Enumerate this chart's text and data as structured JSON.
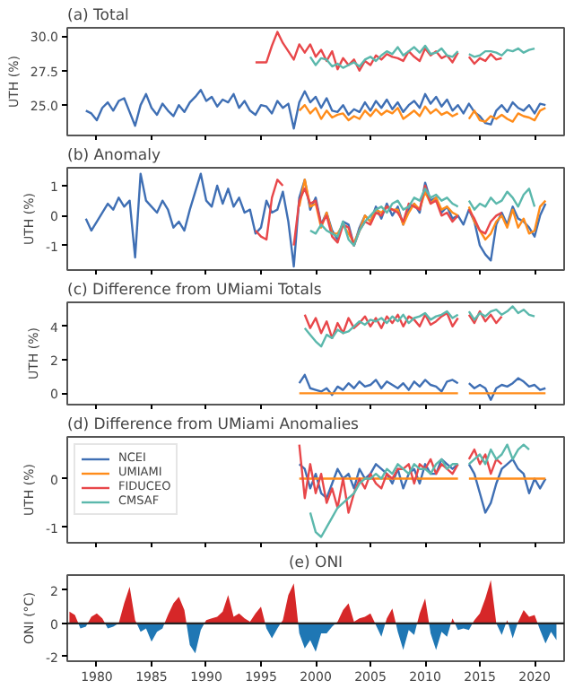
{
  "chart_data": [
    {
      "type": "line",
      "title": "(a)  Total",
      "ylabel": "UTH (%)",
      "xlim": [
        1977.3,
        2022.7
      ],
      "xticks": [
        1980,
        1985,
        1990,
        1995,
        2000,
        2005,
        2010,
        2015,
        2020
      ],
      "ylim": [
        22.8,
        30.6
      ],
      "yticks": [
        {
          "value": 25,
          "label": "25.0"
        },
        27.5,
        {
          "value": 30,
          "label": "30.0"
        }
      ],
      "tick_labels": "y",
      "x": [
        1979,
        1979.5,
        1980,
        1980.5,
        1981,
        1981.5,
        1982,
        1982.5,
        1983,
        1983.5,
        1984,
        1984.5,
        1985,
        1985.5,
        1986,
        1986.5,
        1987,
        1987.5,
        1988,
        1988.5,
        1989,
        1989.5,
        1990,
        1990.5,
        1991,
        1991.5,
        1992,
        1992.5,
        1993,
        1993.5,
        1994,
        1994.5,
        1995,
        1995.5,
        1996,
        1996.5,
        1997,
        1997.5,
        1998,
        1998.5,
        1999,
        1999.5,
        2000,
        2000.5,
        2001,
        2001.5,
        2002,
        2002.5,
        2003,
        2003.5,
        2004,
        2004.5,
        2005,
        2005.5,
        2006,
        2006.5,
        2007,
        2007.5,
        2008,
        2008.5,
        2009,
        2009.5,
        2010,
        2010.5,
        2011,
        2011.5,
        2012,
        2012.5,
        2013,
        2013.5,
        2014,
        2014.5,
        2015,
        2015.5,
        2016,
        2016.5,
        2017,
        2017.5,
        2018,
        2018.5,
        2019,
        2019.5,
        2020,
        2020.5,
        2021
      ],
      "series": [
        {
          "color": "#3f6fb4",
          "values": [
            24.6,
            24.4,
            23.9,
            24.8,
            25.2,
            24.6,
            25.3,
            25.5,
            24.5,
            23.5,
            25.0,
            25.8,
            24.8,
            24.3,
            25.1,
            24.6,
            24.2,
            25.0,
            24.5,
            25.2,
            25.6,
            26.1,
            25.3,
            25.6,
            24.9,
            25.4,
            25.2,
            25.8,
            24.8,
            25.3,
            24.6,
            24.3,
            25.0,
            24.9,
            24.4,
            25.3,
            24.8,
            25.1,
            23.3,
            25.2,
            26.0,
            25.2,
            25.6,
            24.8,
            25.5,
            24.6,
            24.5,
            25.0,
            24.3,
            24.7,
            24.5,
            25.2,
            24.6,
            25.3,
            24.8,
            25.4,
            24.7,
            25.2,
            24.5,
            25.0,
            25.3,
            24.8,
            25.8,
            25.1,
            25.6,
            24.9,
            25.4,
            24.6,
            25.0,
            24.4,
            25.1,
            24.5,
            24.2,
            23.7,
            23.6,
            24.6,
            25.0,
            24.5,
            25.2,
            24.8,
            24.6,
            25.0,
            24.4,
            25.1,
            25.0
          ]
        },
        {
          "color": "#ff8c1a",
          "values": [
            null,
            null,
            null,
            null,
            null,
            null,
            null,
            null,
            null,
            null,
            null,
            null,
            null,
            null,
            null,
            null,
            null,
            null,
            null,
            null,
            null,
            null,
            null,
            null,
            null,
            null,
            null,
            null,
            null,
            null,
            null,
            null,
            null,
            null,
            null,
            null,
            null,
            null,
            null,
            24.6,
            25.0,
            24.4,
            24.8,
            24.0,
            24.6,
            24.1,
            24.3,
            24.4,
            23.9,
            24.2,
            24.0,
            24.6,
            24.2,
            24.7,
            24.3,
            24.6,
            24.4,
            24.8,
            24.0,
            24.3,
            24.6,
            24.2,
            24.9,
            24.4,
            24.7,
            24.3,
            24.5,
            24.2,
            24.4,
            null,
            24.0,
            24.6,
            23.9,
            23.8,
            24.2,
            24.0,
            24.3,
            24.0,
            23.8,
            24.4,
            24.2,
            24.1,
            23.9,
            24.6,
            24.8
          ]
        },
        {
          "color": "#e8474a",
          "values": [
            null,
            null,
            null,
            null,
            null,
            null,
            null,
            null,
            null,
            null,
            null,
            null,
            null,
            null,
            null,
            null,
            null,
            null,
            null,
            null,
            null,
            null,
            null,
            null,
            null,
            null,
            null,
            null,
            null,
            null,
            null,
            28.1,
            28.1,
            28.1,
            29.3,
            30.3,
            29.5,
            28.9,
            28.3,
            29.4,
            28.8,
            29.4,
            28.5,
            29.0,
            28.2,
            28.9,
            27.6,
            28.4,
            27.9,
            28.3,
            27.5,
            28.2,
            27.9,
            28.6,
            28.3,
            28.7,
            28.5,
            28.4,
            28.2,
            28.9,
            28.5,
            28.2,
            29.1,
            28.6,
            28.9,
            28.4,
            28.6,
            28.1,
            28.8,
            null,
            28.5,
            28.0,
            28.4,
            28.2,
            28.7,
            28.3,
            28.4,
            null,
            null,
            null,
            null,
            null,
            null,
            null,
            null
          ]
        },
        {
          "color": "#5bb8ac",
          "values": [
            null,
            null,
            null,
            null,
            null,
            null,
            null,
            null,
            null,
            null,
            null,
            null,
            null,
            null,
            null,
            null,
            null,
            null,
            null,
            null,
            null,
            null,
            null,
            null,
            null,
            null,
            null,
            null,
            null,
            null,
            null,
            null,
            null,
            null,
            null,
            null,
            null,
            null,
            null,
            null,
            null,
            28.5,
            27.9,
            28.4,
            28.3,
            27.8,
            28.0,
            27.7,
            27.9,
            28.1,
            27.8,
            28.3,
            28.5,
            28.2,
            28.6,
            28.9,
            28.7,
            29.2,
            28.6,
            28.9,
            29.2,
            28.8,
            29.3,
            28.7,
            28.8,
            29.1,
            28.6,
            28.5,
            28.9,
            null,
            28.7,
            28.5,
            28.6,
            28.9,
            28.9,
            28.8,
            28.6,
            29.0,
            28.9,
            29.1,
            28.8,
            29.0,
            29.1,
            null,
            null
          ]
        }
      ]
    },
    {
      "type": "line",
      "title": "(b)  Anomaly",
      "ylabel": "UTH (%)",
      "xlim": [
        1977.3,
        2022.7
      ],
      "xticks": [
        1980,
        1985,
        1990,
        1995,
        2000,
        2005,
        2010,
        2015,
        2020
      ],
      "ylim": [
        -1.82,
        1.6
      ],
      "yticks": [
        -1,
        0,
        1
      ],
      "tick_labels": "y",
      "x": [
        1979,
        1979.5,
        1980,
        1980.5,
        1981,
        1981.5,
        1982,
        1982.5,
        1983,
        1983.5,
        1984,
        1984.5,
        1985,
        1985.5,
        1986,
        1986.5,
        1987,
        1987.5,
        1988,
        1988.5,
        1989,
        1989.5,
        1990,
        1990.5,
        1991,
        1991.5,
        1992,
        1992.5,
        1993,
        1993.5,
        1994,
        1994.5,
        1995,
        1995.5,
        1996,
        1996.5,
        1997,
        1997.5,
        1998,
        1998.5,
        1999,
        1999.5,
        2000,
        2000.5,
        2001,
        2001.5,
        2002,
        2002.5,
        2003,
        2003.5,
        2004,
        2004.5,
        2005,
        2005.5,
        2006,
        2006.5,
        2007,
        2007.5,
        2008,
        2008.5,
        2009,
        2009.5,
        2010,
        2010.5,
        2011,
        2011.5,
        2012,
        2012.5,
        2013,
        2013.5,
        2014,
        2014.5,
        2015,
        2015.5,
        2016,
        2016.5,
        2017,
        2017.5,
        2018,
        2018.5,
        2019,
        2019.5,
        2020,
        2020.5,
        2021
      ],
      "series": [
        {
          "color": "#3f6fb4",
          "values": [
            -0.1,
            -0.5,
            -0.2,
            0.1,
            0.4,
            0.2,
            0.6,
            0.3,
            0.5,
            -1.4,
            1.4,
            0.5,
            0.3,
            0.1,
            0.5,
            0.2,
            -0.4,
            -0.2,
            -0.5,
            0.2,
            0.8,
            1.4,
            0.5,
            0.3,
            1.0,
            0.4,
            0.9,
            0.3,
            0.6,
            0.1,
            0.2,
            -0.6,
            -0.4,
            0.5,
            0.1,
            0.2,
            0.8,
            -0.2,
            -1.7,
            0.6,
            1.2,
            0.2,
            0.6,
            -0.3,
            0.1,
            -0.5,
            -0.8,
            -0.2,
            -0.3,
            -1.0,
            -0.4,
            0.0,
            -0.2,
            0.3,
            -0.1,
            0.4,
            0.0,
            0.3,
            -0.3,
            0.2,
            0.4,
            0.1,
            1.1,
            0.5,
            0.6,
            0.1,
            0.3,
            -0.1,
            0.0,
            -0.3,
            0.2,
            -0.2,
            -1.0,
            -1.3,
            -1.5,
            -0.3,
            0.1,
            -0.3,
            0.3,
            -0.1,
            -0.2,
            -0.4,
            -0.7,
            0.0,
            0.4
          ]
        },
        {
          "color": "#ff8c1a",
          "values": [
            null,
            null,
            null,
            null,
            null,
            null,
            null,
            null,
            null,
            null,
            null,
            null,
            null,
            null,
            null,
            null,
            null,
            null,
            null,
            null,
            null,
            null,
            null,
            null,
            null,
            null,
            null,
            null,
            null,
            null,
            null,
            null,
            null,
            null,
            null,
            null,
            null,
            null,
            null,
            0.3,
            1.2,
            0.3,
            0.4,
            -0.4,
            0.1,
            -0.6,
            -0.6,
            -0.3,
            -0.6,
            -0.9,
            -0.5,
            0.0,
            -0.2,
            0.2,
            0.1,
            0.3,
            0.2,
            0.2,
            -0.3,
            0.1,
            0.4,
            0.2,
            0.8,
            0.4,
            0.6,
            0.2,
            0.3,
            0.1,
            0.0,
            null,
            0.3,
            -0.2,
            -0.5,
            -0.8,
            -0.6,
            -0.2,
            0.0,
            -0.4,
            0.2,
            -0.4,
            -0.1,
            -0.6,
            -0.5,
            0.3,
            0.5
          ]
        },
        {
          "color": "#e8474a",
          "values": [
            null,
            null,
            null,
            null,
            null,
            null,
            null,
            null,
            null,
            null,
            null,
            null,
            null,
            null,
            null,
            null,
            null,
            null,
            null,
            null,
            null,
            null,
            null,
            null,
            null,
            null,
            null,
            null,
            null,
            null,
            null,
            -0.5,
            -0.7,
            -0.8,
            0.6,
            1.2,
            1.0,
            null,
            -1.0,
            0.5,
            0.9,
            0.4,
            0.5,
            -0.3,
            0.0,
            -0.7,
            -0.9,
            -0.3,
            -0.4,
            -1.0,
            -0.5,
            -0.2,
            -0.3,
            0.1,
            0.0,
            0.3,
            0.2,
            0.1,
            -0.2,
            0.4,
            0.3,
            0.2,
            1.0,
            0.4,
            0.5,
            0.0,
            0.1,
            -0.2,
            0.0,
            null,
            0.2,
            -0.1,
            -0.5,
            -0.6,
            -0.2,
            0.0,
            0.1,
            null,
            null,
            null,
            null,
            null,
            null,
            null,
            null
          ]
        },
        {
          "color": "#5bb8ac",
          "values": [
            null,
            null,
            null,
            null,
            null,
            null,
            null,
            null,
            null,
            null,
            null,
            null,
            null,
            null,
            null,
            null,
            null,
            null,
            null,
            null,
            null,
            null,
            null,
            null,
            null,
            null,
            null,
            null,
            null,
            null,
            null,
            null,
            null,
            null,
            null,
            null,
            null,
            null,
            null,
            null,
            null,
            -0.5,
            -0.6,
            -0.3,
            -0.5,
            -0.6,
            -0.7,
            -0.2,
            -0.8,
            -1.0,
            -0.5,
            -0.2,
            0.0,
            0.2,
            0.3,
            0.1,
            0.4,
            0.5,
            0.2,
            0.3,
            0.6,
            0.5,
            0.9,
            0.6,
            0.7,
            0.5,
            0.6,
            0.4,
            0.3,
            null,
            0.5,
            0.2,
            0.4,
            0.3,
            0.6,
            0.4,
            0.5,
            0.8,
            0.6,
            0.3,
            0.7,
            0.9,
            0.3,
            null,
            null
          ]
        }
      ]
    },
    {
      "type": "line",
      "title": "(c)  Difference from UMiami Totals",
      "ylabel": "UTH (%)",
      "xlim": [
        1977.3,
        2022.7
      ],
      "xticks": [
        1980,
        1985,
        1990,
        1995,
        2000,
        2005,
        2010,
        2015,
        2020
      ],
      "ylim": [
        -0.68,
        5.44
      ],
      "yticks": [
        0,
        2,
        4
      ],
      "tick_labels": "y",
      "x": [
        1998.5,
        1999,
        1999.5,
        2000,
        2000.5,
        2001,
        2001.5,
        2002,
        2002.5,
        2003,
        2003.5,
        2004,
        2004.5,
        2005,
        2005.5,
        2006,
        2006.5,
        2007,
        2007.5,
        2008,
        2008.5,
        2009,
        2009.5,
        2010,
        2010.5,
        2011,
        2011.5,
        2012,
        2012.5,
        2013,
        2013.5,
        2014,
        2014.5,
        2015,
        2015.5,
        2016,
        2016.5,
        2017,
        2017.5,
        2018,
        2018.5,
        2019,
        2019.5,
        2020,
        2020.5,
        2021
      ],
      "series": [
        {
          "color": "#3f6fb4",
          "values": [
            0.6,
            1.1,
            0.3,
            0.2,
            0.1,
            0.3,
            -0.1,
            0.4,
            0.2,
            0.6,
            0.3,
            0.7,
            0.4,
            0.5,
            0.8,
            0.3,
            0.7,
            0.5,
            0.3,
            0.6,
            0.2,
            0.7,
            0.4,
            0.8,
            0.5,
            0.4,
            0.1,
            0.7,
            0.8,
            0.6,
            null,
            0.6,
            0.3,
            0.5,
            0.3,
            -0.4,
            0.3,
            0.5,
            0.4,
            0.6,
            0.9,
            0.7,
            0.4,
            0.5,
            0.2,
            0.3
          ]
        },
        {
          "color": "#ff8c1a",
          "values": [
            0,
            0,
            0,
            0,
            0,
            0,
            0,
            0,
            0,
            0,
            0,
            0,
            0,
            0,
            0,
            0,
            0,
            0,
            0,
            0,
            0,
            0,
            0,
            0,
            0,
            0,
            0,
            0,
            0,
            0,
            null,
            0,
            0,
            0,
            0,
            0,
            0,
            0,
            0,
            0,
            0,
            0,
            0,
            0,
            0,
            0
          ]
        },
        {
          "color": "#e8474a",
          "values": [
            null,
            4.7,
            3.9,
            4.5,
            3.6,
            4.3,
            3.3,
            4.2,
            3.6,
            4.5,
            3.9,
            4.2,
            4.6,
            4.0,
            4.5,
            3.9,
            4.6,
            4.2,
            4.7,
            4.0,
            4.6,
            4.4,
            4.0,
            4.7,
            4.1,
            4.3,
            4.6,
            4.8,
            4.0,
            4.5,
            null,
            4.7,
            4.2,
            4.9,
            4.3,
            4.7,
            4.2,
            4.6,
            null,
            null,
            null,
            null,
            null,
            null,
            null,
            null
          ]
        },
        {
          "color": "#5bb8ac",
          "values": [
            null,
            3.9,
            3.5,
            3.1,
            2.8,
            3.5,
            3.3,
            3.8,
            3.6,
            3.7,
            4.0,
            4.3,
            4.1,
            4.4,
            4.3,
            4.5,
            4.2,
            4.6,
            4.3,
            4.7,
            4.2,
            4.5,
            4.6,
            4.8,
            4.4,
            4.6,
            4.7,
            4.9,
            4.5,
            4.7,
            null,
            4.9,
            4.4,
            4.8,
            4.6,
            4.9,
            5.0,
            4.7,
            4.9,
            5.2,
            4.8,
            5.0,
            4.7,
            4.6,
            null,
            null
          ]
        }
      ]
    },
    {
      "type": "line",
      "title": "(d)  Difference from UMiami Anomalies",
      "ylabel": "UTH (%)",
      "xlim": [
        1977.3,
        2022.7
      ],
      "xticks": [
        1980,
        1985,
        1990,
        1995,
        2000,
        2005,
        2010,
        2015,
        2020
      ],
      "ylim": [
        -1.32,
        0.86
      ],
      "yticks": [
        -1,
        0
      ],
      "tick_labels": "y",
      "legend": "top left",
      "x": [
        1998.5,
        1999,
        1999.5,
        2000,
        2000.5,
        2001,
        2001.5,
        2002,
        2002.5,
        2003,
        2003.5,
        2004,
        2004.5,
        2005,
        2005.5,
        2006,
        2006.5,
        2007,
        2007.5,
        2008,
        2008.5,
        2009,
        2009.5,
        2010,
        2010.5,
        2011,
        2011.5,
        2012,
        2012.5,
        2013,
        2013.5,
        2014,
        2014.5,
        2015,
        2015.5,
        2016,
        2016.5,
        2017,
        2017.5,
        2018,
        2018.5,
        2019,
        2019.5,
        2020,
        2020.5,
        2021
      ],
      "series": [
        {
          "name": "NCEI",
          "color": "#3f6fb4",
          "values": [
            0.3,
            0.2,
            -0.2,
            0.1,
            -0.3,
            -0.4,
            -0.1,
            0.2,
            0.0,
            0.1,
            -0.2,
            0.2,
            0.0,
            0.1,
            0.3,
            0.2,
            0.1,
            -0.1,
            0.2,
            -0.2,
            0.1,
            0.2,
            -0.1,
            0.3,
            0.1,
            0.1,
            0.4,
            0.3,
            0.2,
            0.3,
            null,
            0.3,
            0.1,
            -0.3,
            -0.7,
            -0.5,
            -0.1,
            0.2,
            0.3,
            0.4,
            0.2,
            0.1,
            -0.3,
            0.0,
            -0.2,
            0.0
          ]
        },
        {
          "name": "UMIAMI",
          "color": "#ff8c1a",
          "values": [
            0,
            0,
            0,
            0,
            0,
            0,
            0,
            0,
            0,
            0,
            0,
            0,
            0,
            0,
            0,
            0,
            0,
            0,
            0,
            0,
            0,
            0,
            0,
            0,
            0,
            0,
            0,
            0,
            0,
            0,
            null,
            0,
            0,
            0,
            0,
            0,
            0,
            0,
            0,
            0,
            0,
            0,
            0,
            0,
            0,
            0
          ]
        },
        {
          "name": "FIDUCEO",
          "color": "#e8474a",
          "values": [
            0.7,
            -0.4,
            0.3,
            -0.3,
            0.1,
            -0.5,
            -0.2,
            -0.6,
            0.0,
            -0.7,
            -0.3,
            0.0,
            -0.2,
            0.1,
            -0.1,
            -0.2,
            0.1,
            0.0,
            0.2,
            0.2,
            0.3,
            -0.1,
            0.3,
            0.2,
            0.4,
            0.1,
            0.3,
            0.2,
            0.1,
            0.3,
            null,
            0.4,
            0.6,
            0.3,
            0.5,
            0.1,
            0.4,
            0.3,
            null,
            null,
            null,
            null,
            null,
            null,
            null,
            null
          ]
        },
        {
          "name": "CMSAF",
          "color": "#5bb8ac",
          "values": [
            null,
            null,
            -0.7,
            -1.1,
            -1.2,
            -1.0,
            -0.8,
            -0.6,
            -0.5,
            -0.4,
            -0.3,
            -0.1,
            0.0,
            0.0,
            0.1,
            0.0,
            0.2,
            0.1,
            0.3,
            0.2,
            0.1,
            0.3,
            0.2,
            0.2,
            0.1,
            0.3,
            0.4,
            0.2,
            0.3,
            0.3,
            null,
            0.3,
            0.4,
            0.5,
            0.3,
            0.6,
            0.4,
            0.5,
            0.7,
            0.4,
            0.6,
            0.7,
            0.6,
            null,
            null,
            null
          ]
        }
      ]
    },
    {
      "type": "area",
      "title": "(e) ONI",
      "ylabel": "ONI (°C)",
      "xlim": [
        1977.3,
        2022.7
      ],
      "xticks": [
        1980,
        1985,
        1990,
        1995,
        2000,
        2005,
        2010,
        2015,
        2020
      ],
      "ylim": [
        -2.27,
        2.9
      ],
      "yticks": [
        -2,
        0,
        2
      ],
      "ref_lines": [
        {
          "axis": "y",
          "value": 0
        }
      ],
      "x": [
        1977.5,
        1978,
        1978.5,
        1979,
        1979.5,
        1980,
        1980.5,
        1981,
        1981.5,
        1982,
        1982.5,
        1983,
        1983.5,
        1984,
        1984.5,
        1985,
        1985.5,
        1986,
        1986.5,
        1987,
        1987.5,
        1988,
        1988.5,
        1989,
        1989.5,
        1990,
        1990.5,
        1991,
        1991.5,
        1992,
        1992.5,
        1993,
        1993.5,
        1994,
        1994.5,
        1995,
        1995.5,
        1996,
        1996.5,
        1997,
        1997.5,
        1998,
        1998.5,
        1999,
        1999.5,
        2000,
        2000.5,
        2001,
        2001.5,
        2002,
        2002.5,
        2003,
        2003.5,
        2004,
        2004.5,
        2005,
        2005.5,
        2006,
        2006.5,
        2007,
        2007.5,
        2008,
        2008.5,
        2009,
        2009.5,
        2010,
        2010.5,
        2011,
        2011.5,
        2012,
        2012.5,
        2013,
        2013.5,
        2014,
        2014.5,
        2015,
        2015.5,
        2016,
        2016.5,
        2017,
        2017.5,
        2018,
        2018.5,
        2019,
        2019.5,
        2020,
        2020.5,
        2021,
        2021.5,
        2022
      ],
      "series": [
        {
          "color": "#d62728",
          "values": [
            0.7,
            0.5,
            null,
            null,
            0.4,
            0.6,
            0.3,
            null,
            null,
            0.0,
            1.2,
            2.2,
            0.2,
            null,
            null,
            null,
            null,
            null,
            0.5,
            1.2,
            1.6,
            0.8,
            null,
            null,
            null,
            0.2,
            0.3,
            0.4,
            0.7,
            1.7,
            0.4,
            0.6,
            0.3,
            0.1,
            0.6,
            1.0,
            null,
            null,
            null,
            0.2,
            1.7,
            2.4,
            null,
            null,
            null,
            null,
            null,
            null,
            null,
            0.1,
            0.8,
            1.2,
            0.1,
            0.3,
            0.4,
            0.6,
            null,
            null,
            0.3,
            0.9,
            null,
            null,
            null,
            null,
            0.6,
            1.5,
            null,
            null,
            null,
            null,
            0.3,
            null,
            null,
            null,
            0.2,
            0.6,
            1.5,
            2.6,
            0.0,
            null,
            0.2,
            null,
            0.1,
            0.8,
            0.4,
            0.5,
            null,
            null,
            null,
            null
          ]
        },
        {
          "color": "#1f77b4",
          "values": [
            null,
            null,
            -0.3,
            -0.2,
            null,
            null,
            null,
            -0.3,
            -0.2,
            null,
            null,
            null,
            null,
            -0.5,
            -0.3,
            -1.1,
            -0.5,
            -0.3,
            null,
            null,
            null,
            null,
            -1.3,
            -1.8,
            -0.4,
            null,
            null,
            null,
            null,
            null,
            null,
            null,
            null,
            null,
            null,
            null,
            -0.3,
            -0.9,
            -0.3,
            null,
            null,
            null,
            -0.6,
            -1.5,
            -1.0,
            -1.7,
            -0.6,
            -0.6,
            -0.2,
            null,
            null,
            null,
            null,
            null,
            null,
            null,
            -0.1,
            -0.8,
            null,
            null,
            -0.5,
            -1.6,
            -0.4,
            -0.7,
            null,
            null,
            -0.6,
            -1.6,
            -0.5,
            -0.8,
            null,
            -0.4,
            -0.3,
            -0.4,
            null,
            null,
            null,
            null,
            null,
            -0.7,
            null,
            -0.9,
            null,
            null,
            null,
            null,
            -0.4,
            -1.2,
            -0.5,
            -1.0
          ]
        }
      ]
    }
  ]
}
